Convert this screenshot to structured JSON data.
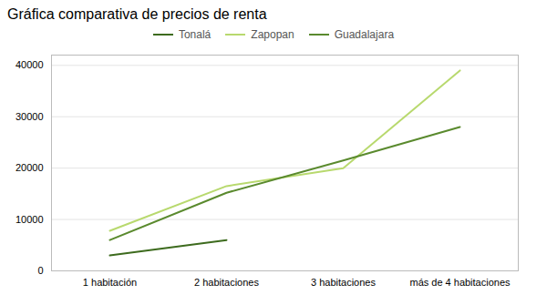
{
  "chart_data": {
    "type": "line",
    "title": "Gráfica comparativa de precios de renta",
    "categories": [
      "1 habitación",
      "2 habitaciones",
      "3 habitaciones",
      "más de 4 habitaciones"
    ],
    "series": [
      {
        "name": "Tonalá",
        "color": "#3d6b1e",
        "values": [
          3000,
          6000,
          null,
          null
        ]
      },
      {
        "name": "Zapopan",
        "color": "#b8d96e",
        "values": [
          7800,
          16500,
          20000,
          39000
        ]
      },
      {
        "name": "Guadalajara",
        "color": "#5a8a2e",
        "values": [
          6000,
          15200,
          21500,
          28000
        ]
      }
    ],
    "ylim": [
      0,
      42000
    ],
    "yticks": [
      0,
      10000,
      20000,
      30000,
      40000
    ],
    "grid": true,
    "legend": "top"
  }
}
